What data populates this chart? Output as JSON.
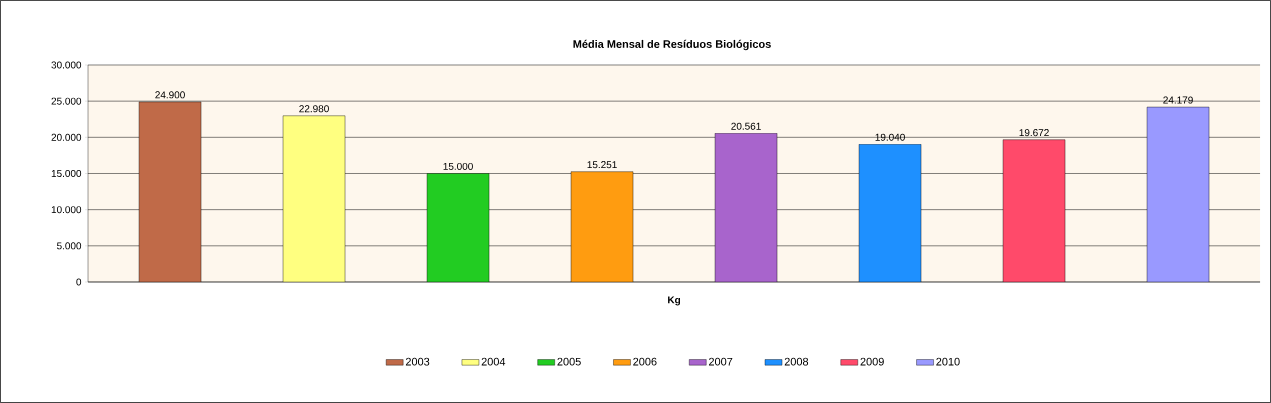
{
  "chart_data": {
    "type": "bar",
    "title": "Média Mensal de Resíduos Biológicos",
    "categories": [
      "Kg"
    ],
    "series": [
      {
        "name": "2003",
        "color": "#c06a48",
        "values": [
          24900
        ],
        "value_labels": [
          "24.900"
        ]
      },
      {
        "name": "2004",
        "color": "#ffff80",
        "values": [
          22980
        ],
        "value_labels": [
          "22.980"
        ]
      },
      {
        "name": "2005",
        "color": "#22cc22",
        "values": [
          15000
        ],
        "value_labels": [
          "15.000"
        ]
      },
      {
        "name": "2006",
        "color": "#ff9c10",
        "values": [
          15251
        ],
        "value_labels": [
          "15.251"
        ]
      },
      {
        "name": "2007",
        "color": "#a864cc",
        "values": [
          20561
        ],
        "value_labels": [
          "20.561"
        ]
      },
      {
        "name": "2008",
        "color": "#1e90ff",
        "values": [
          19040
        ],
        "value_labels": [
          "19.040"
        ]
      },
      {
        "name": "2009",
        "color": "#ff4a6a",
        "values": [
          19672
        ],
        "value_labels": [
          "19.672"
        ]
      },
      {
        "name": "2010",
        "color": "#9999ff",
        "values": [
          24179
        ],
        "value_labels": [
          "24.179"
        ]
      }
    ],
    "ylim": [
      0,
      30000
    ],
    "yticks": [
      {
        "value": 0,
        "label": "0"
      },
      {
        "value": 5000,
        "label": "5.000"
      },
      {
        "value": 10000,
        "label": "10.000"
      },
      {
        "value": 15000,
        "label": "15.000"
      },
      {
        "value": 20000,
        "label": "20.000"
      },
      {
        "value": 25000,
        "label": "25.000"
      },
      {
        "value": 30000,
        "label": "30.000"
      }
    ],
    "grid": "y",
    "legend": "bottom"
  }
}
